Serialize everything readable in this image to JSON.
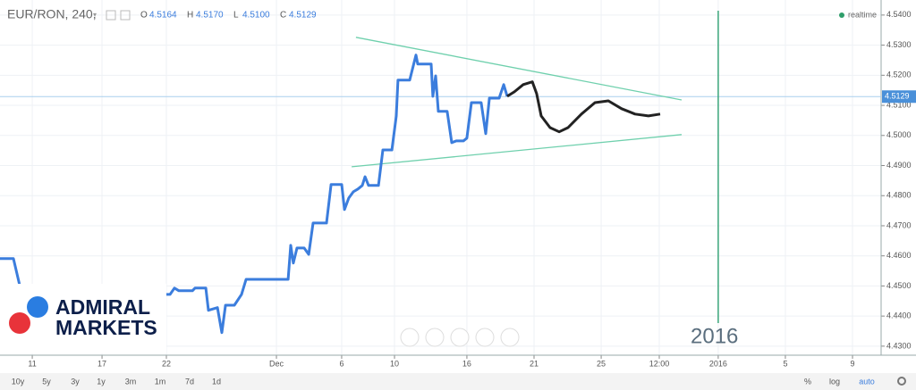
{
  "chart_data": {
    "type": "line",
    "title": "EUR/RON, 240,",
    "ohlc_labels": [
      "O",
      "H",
      "L",
      "C"
    ],
    "ohlc": [
      4.5164,
      {
        "value": 4.517,
        "label": "4.5170"
      },
      {
        "value": 4.51,
        "label": "4.5100"
      },
      4.5129
    ],
    "realtime_label": "realtime",
    "annotation": "2016",
    "last_price": 4.5129,
    "xlim": [
      -1.85,
      48.67
    ],
    "ylim": [
      4.427,
      4.545
    ],
    "grid": true,
    "xticks": [
      {
        "value": 0,
        "label": "11"
      },
      {
        "value": 4,
        "label": "17"
      },
      {
        "value": 7.69,
        "label": "22"
      },
      {
        "value": 14,
        "label": "Dec"
      },
      {
        "value": 17.74,
        "label": "6"
      },
      {
        "value": 20.77,
        "label": "10"
      },
      {
        "value": 24.92,
        "label": "16"
      },
      {
        "value": 28.77,
        "label": "21"
      },
      {
        "value": 32.62,
        "label": "25"
      },
      {
        "value": 35.95,
        "label": "12:00"
      },
      {
        "value": 39.33,
        "label": "2016"
      },
      {
        "value": 43.18,
        "label": "5"
      },
      {
        "value": 47.03,
        "label": "9"
      }
    ],
    "yticks": [
      {
        "value": 4.54,
        "label": "4.5400"
      },
      {
        "value": 4.53,
        "label": "4.5300"
      },
      {
        "value": 4.52,
        "label": "4.5200"
      },
      {
        "value": 4.51,
        "label": "4.5100"
      },
      {
        "value": 4.5,
        "label": "4.5000"
      },
      {
        "value": 4.49,
        "label": "4.4900"
      },
      {
        "value": 4.48,
        "label": "4.4800"
      },
      {
        "value": 4.47,
        "label": "4.4700"
      },
      {
        "value": 4.46,
        "label": "4.4600"
      },
      {
        "value": 4.45,
        "label": "4.4500"
      },
      {
        "value": 4.44,
        "label": "4.4400"
      },
      {
        "value": 4.43,
        "label": "4.4300"
      }
    ],
    "series": [
      {
        "color": "#3b7ddd",
        "x": [
          -1.85,
          -1.08,
          -0.72,
          7.64,
          7.9,
          8.15,
          8.41,
          9.18,
          9.33,
          9.95,
          10.1,
          10.62,
          10.87,
          11.08,
          11.59,
          12,
          12.26,
          14.67,
          14.82,
          14.97,
          15.18,
          15.59,
          15.85,
          16.1,
          16.87,
          17.13,
          17.74,
          17.9,
          18.15,
          18.41,
          18.67,
          18.92,
          19.08,
          19.28,
          19.85,
          20.1,
          20.62,
          20.87,
          20.97,
          21.64,
          22,
          22.1,
          22.87,
          22.97,
          23.13,
          23.28,
          23.79,
          24.05,
          24.31,
          24.72,
          24.92,
          25.18,
          25.74,
          26,
          26.21,
          26.77,
          27.03,
          27.23
        ],
        "values": [
          4.4591,
          4.4591,
          4.4502,
          4.4472,
          4.4472,
          4.4493,
          4.4484,
          4.4484,
          4.4493,
          4.4493,
          4.4419,
          4.4428,
          4.4345,
          4.4436,
          4.4436,
          4.4472,
          4.4522,
          4.4522,
          4.4635,
          4.4576,
          4.4626,
          4.4626,
          4.4605,
          4.4709,
          4.4709,
          4.4837,
          4.4837,
          4.4754,
          4.4792,
          4.4813,
          4.4822,
          4.4834,
          4.4863,
          4.4834,
          4.4834,
          4.4952,
          4.4952,
          4.5065,
          4.5184,
          4.5184,
          4.5267,
          4.5237,
          4.5237,
          4.513,
          4.5198,
          4.508,
          4.508,
          4.4976,
          4.4982,
          4.4982,
          4.4991,
          4.5109,
          4.5109,
          4.5006,
          4.5124,
          4.5124,
          4.5169,
          4.513
        ]
      },
      {
        "color": "#222222",
        "x": [
          27.23,
          27.64,
          28.15,
          28.67,
          28.92,
          29.18,
          29.69,
          30.21,
          30.72,
          31.49,
          32.26,
          33.03,
          33.79,
          34.56,
          35.33,
          36
        ],
        "values": [
          4.513,
          4.5145,
          4.5169,
          4.5178,
          4.5139,
          4.5065,
          4.5026,
          4.5012,
          4.5026,
          4.5071,
          4.5109,
          4.5115,
          4.5089,
          4.5071,
          4.5065,
          4.5071
        ]
      }
    ],
    "trendlines": [
      {
        "color": "#6fd0ad",
        "x": [
          18.56,
          37.23
        ],
        "values": [
          4.5326,
          4.5118
        ]
      },
      {
        "color": "#6fd0ad",
        "x": [
          18.31,
          37.23
        ],
        "values": [
          4.4896,
          4.5003
        ]
      }
    ],
    "vline": {
      "x": 39.33,
      "color": "#3aa57a"
    },
    "toolbar": [
      "10y",
      "5y",
      "3y",
      "1y",
      "3m",
      "1m",
      "7d",
      "1d"
    ],
    "toolbar_right": [
      "%",
      "log",
      "auto"
    ],
    "logo": [
      "ADMIRAL",
      "MARKETS"
    ]
  }
}
